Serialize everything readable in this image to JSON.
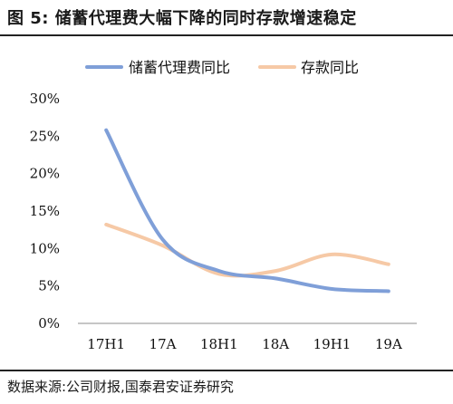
{
  "title": "图 5:  储蓄代理费大幅下降的同时存款增速稳定",
  "source": "数据来源:公司财报,国泰君安证券研究",
  "chart_data": {
    "type": "line",
    "categories": [
      "17H1",
      "17A",
      "18H1",
      "18A",
      "19H1",
      "19A"
    ],
    "y_ticks": [
      "0%",
      "5%",
      "10%",
      "15%",
      "20%",
      "25%",
      "30%"
    ],
    "ylim": [
      0,
      30
    ],
    "grid": false,
    "legend_position": "top",
    "series": [
      {
        "name": "储蓄代理费同比",
        "color": "#7f9fd8",
        "values": [
          25.8,
          11.2,
          7.0,
          6.0,
          4.6,
          4.3
        ]
      },
      {
        "name": "存款同比",
        "color": "#f6c9a6",
        "values": [
          13.2,
          10.4,
          6.6,
          7.0,
          9.2,
          7.9
        ]
      }
    ]
  }
}
